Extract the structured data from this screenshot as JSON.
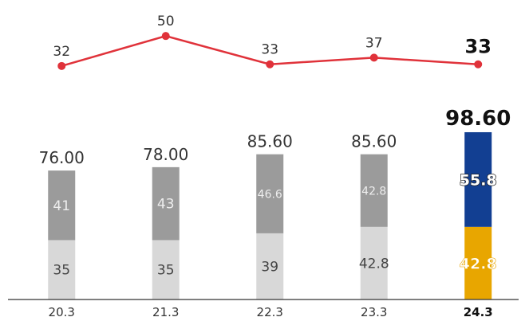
{
  "chart_data": {
    "type": "bar",
    "stacked": true,
    "categories": [
      "20.3",
      "21.3",
      "22.3",
      "23.3",
      "24.3"
    ],
    "series": [
      {
        "values": [
          35,
          35,
          39,
          42.8,
          42.8
        ],
        "colors": [
          "#d8d8d8",
          "#d8d8d8",
          "#d8d8d8",
          "#d8d8d8",
          "#e8a600"
        ]
      },
      {
        "values": [
          41,
          43,
          46.6,
          42.8,
          55.8
        ],
        "colors": [
          "#9b9b9b",
          "#9b9b9b",
          "#9b9b9b",
          "#9b9b9b",
          "#123f92"
        ]
      }
    ],
    "totals": [
      "76.00",
      "78.00",
      "85.60",
      "85.60",
      "98.60"
    ],
    "line": {
      "values": [
        32,
        50,
        33,
        37,
        33
      ],
      "color": "#e0323a"
    },
    "highlight_category": "24.3",
    "grid": false,
    "legend": "none"
  }
}
